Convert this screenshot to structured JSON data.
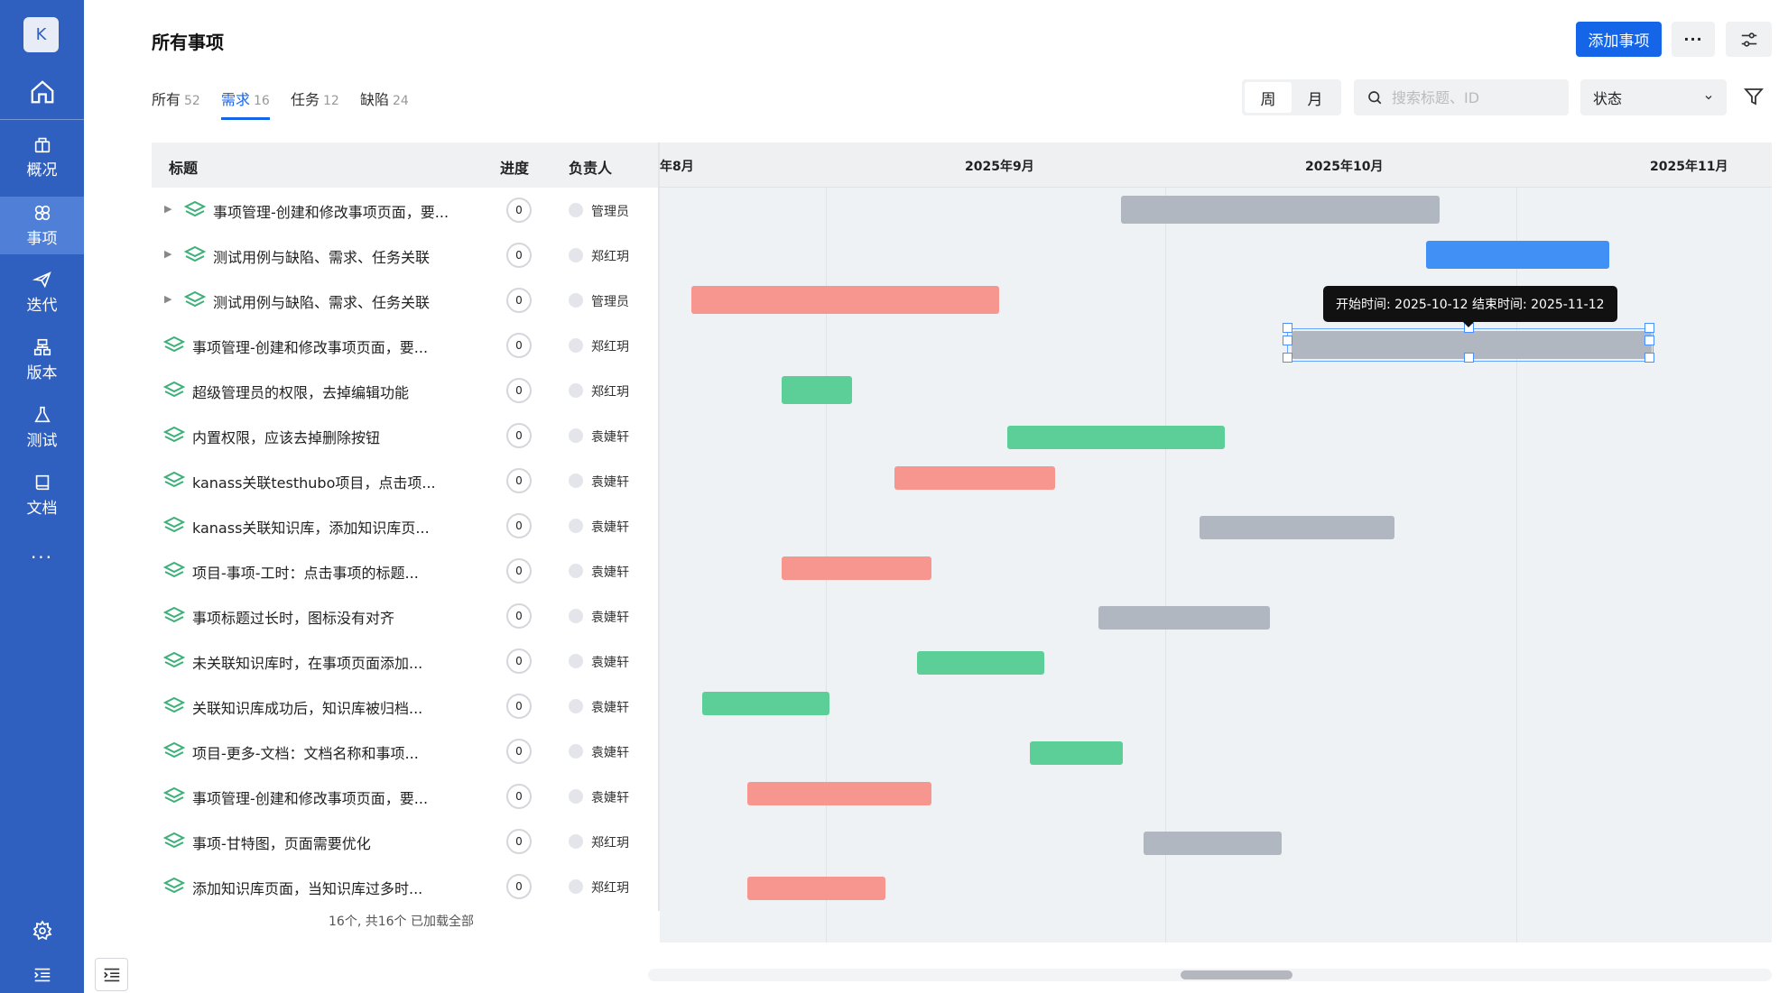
{
  "sidebar": {
    "avatar_letter": "K",
    "nav": [
      {
        "label": "概况",
        "icon": "overview-icon"
      },
      {
        "label": "事项",
        "icon": "work-item-icon",
        "active": true
      },
      {
        "label": "迭代",
        "icon": "sprint-icon"
      },
      {
        "label": "版本",
        "icon": "version-icon"
      },
      {
        "label": "测试",
        "icon": "test-icon"
      },
      {
        "label": "文档",
        "icon": "document-icon"
      }
    ],
    "more": "···"
  },
  "header": {
    "title": "所有事项",
    "add_label": "添加事项",
    "more_label": "···"
  },
  "tabs": [
    {
      "label": "所有",
      "count": "52"
    },
    {
      "label": "需求",
      "count": "16",
      "active": true
    },
    {
      "label": "任务",
      "count": "12"
    },
    {
      "label": "缺陷",
      "count": "24"
    }
  ],
  "toolbar": {
    "week": "周",
    "month": "月",
    "search_placeholder": "搜索标题、ID",
    "status_label": "状态"
  },
  "table": {
    "headers": {
      "title": "标题",
      "progress": "进度",
      "owner": "负责人"
    },
    "rows": [
      {
        "title": "事项管理-创建和修改事项页面，要...",
        "progress": "0",
        "owner": "管理员",
        "expandable": true
      },
      {
        "title": "测试用例与缺陷、需求、任务关联",
        "progress": "0",
        "owner": "郑红玥",
        "expandable": true
      },
      {
        "title": "测试用例与缺陷、需求、任务关联",
        "progress": "0",
        "owner": "管理员",
        "expandable": true
      },
      {
        "title": "事项管理-创建和修改事项页面，要...",
        "progress": "0",
        "owner": "郑红玥"
      },
      {
        "title": "超级管理员的权限，去掉编辑功能",
        "progress": "0",
        "owner": "郑红玥"
      },
      {
        "title": "内置权限，应该去掉删除按钮",
        "progress": "0",
        "owner": "袁婕轩"
      },
      {
        "title": "kanass关联testhubo项目，点击项...",
        "progress": "0",
        "owner": "袁婕轩"
      },
      {
        "title": "kanass关联知识库，添加知识库页...",
        "progress": "0",
        "owner": "袁婕轩"
      },
      {
        "title": "项目-事项-工时：点击事项的标题...",
        "progress": "0",
        "owner": "袁婕轩"
      },
      {
        "title": "事项标题过长时，图标没有对齐",
        "progress": "0",
        "owner": "袁婕轩"
      },
      {
        "title": "未关联知识库时，在事项页面添加...",
        "progress": "0",
        "owner": "袁婕轩"
      },
      {
        "title": "关联知识库成功后，知识库被归档...",
        "progress": "0",
        "owner": "袁婕轩"
      },
      {
        "title": "项目-更多-文档：文档名称和事项...",
        "progress": "0",
        "owner": "袁婕轩"
      },
      {
        "title": "事项管理-创建和修改事项页面，要...",
        "progress": "0",
        "owner": "袁婕轩"
      },
      {
        "title": "事项-甘特图，页面需要优化",
        "progress": "0",
        "owner": "郑红玥"
      },
      {
        "title": "添加知识库页面，当知识库过多时...",
        "progress": "0",
        "owner": "郑红玥"
      }
    ],
    "footer": "16个, 共16个   已加载全部"
  },
  "gantt": {
    "months": [
      "年8月",
      "2025年9月",
      "2025年10月",
      "2025年11月"
    ],
    "tooltip": "开始时间: 2025-10-12  结束时间: 2025-11-12",
    "colors": {
      "gray": "#b0b7c1",
      "blue": "#4190f5",
      "red": "#f7958f",
      "green": "#5ccf99"
    }
  }
}
